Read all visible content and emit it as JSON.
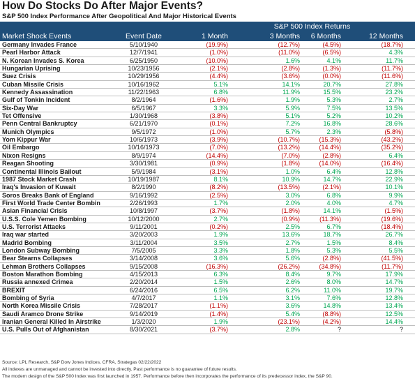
{
  "title": "How Do Stocks Do After Major Events?",
  "subtitle": "S&P 500 Index Performance After Geopolitical And Major Historical Events",
  "header": {
    "group": "S&P 500 Index Returns",
    "event": "Market Shock Events",
    "date": "Event Date",
    "m1": "1 Month",
    "m3": "3 Months",
    "m6": "6 Months",
    "m12": "12 Months"
  },
  "rows": [
    {
      "event": "Germany Invades France",
      "date": "5/10/1940",
      "m1": "(19.9%)",
      "m3": "(12.7%)",
      "m6": "(4.5%)",
      "m12": "(18.7%)"
    },
    {
      "event": "Pearl Harbor Attack",
      "date": "12/7/1941",
      "m1": "(1.0%)",
      "m3": "(11.0%)",
      "m6": "(6.5%)",
      "m12": "4.3%"
    },
    {
      "event": "N. Korean Invades S. Korea",
      "date": "6/25/1950",
      "m1": "(10.0%)",
      "m3": "1.6%",
      "m6": "4.1%",
      "m12": "11.7%"
    },
    {
      "event": "Hungarian Uprising",
      "date": "10/23/1956",
      "m1": "(2.1%)",
      "m3": "(2.8%)",
      "m6": "(1.3%)",
      "m12": "(11.7%)"
    },
    {
      "event": "Suez Crisis",
      "date": "10/29/1956",
      "m1": "(4.4%)",
      "m3": "(3.6%)",
      "m6": "(0.0%)",
      "m12": "(11.6%)"
    },
    {
      "event": "Cuban Missile Crisis",
      "date": "10/16/1962",
      "m1": "5.1%",
      "m3": "14.1%",
      "m6": "20.7%",
      "m12": "27.8%"
    },
    {
      "event": "Kennedy Assassination",
      "date": "11/22/1963",
      "m1": "6.8%",
      "m3": "11.9%",
      "m6": "15.5%",
      "m12": "23.2%"
    },
    {
      "event": "Gulf of Tonkin Incident",
      "date": "8/2/1964",
      "m1": "(1.6%)",
      "m3": "1.9%",
      "m6": "5.3%",
      "m12": "2.7%"
    },
    {
      "event": "Six-Day War",
      "date": "6/5/1967",
      "m1": "3.3%",
      "m3": "5.9%",
      "m6": "7.5%",
      "m12": "13.5%"
    },
    {
      "event": "Tet Offensive",
      "date": "1/30/1968",
      "m1": "(3.8%)",
      "m3": "5.1%",
      "m6": "5.2%",
      "m12": "10.2%"
    },
    {
      "event": "Penn Central Bankruptcy",
      "date": "6/21/1970",
      "m1": "(0.1%)",
      "m3": "7.2%",
      "m6": "16.8%",
      "m12": "28.6%"
    },
    {
      "event": "Munich Olympics",
      "date": "9/5/1972",
      "m1": "(1.0%)",
      "m3": "5.7%",
      "m6": "2.3%",
      "m12": "(5.8%)"
    },
    {
      "event": "Yom Kippur War",
      "date": "10/6/1973",
      "m1": "(3.9%)",
      "m3": "(10.7%)",
      "m6": "(15.3%)",
      "m12": "(43.2%)"
    },
    {
      "event": "Oil Embargo",
      "date": "10/16/1973",
      "m1": "(7.0%)",
      "m3": "(13.2%)",
      "m6": "(14.4%)",
      "m12": "(35.2%)"
    },
    {
      "event": "Nixon Resigns",
      "date": "8/9/1974",
      "m1": "(14.4%)",
      "m3": "(7.0%)",
      "m6": "(2.8%)",
      "m12": "6.4%"
    },
    {
      "event": "Reagan Shooting",
      "date": "3/30/1981",
      "m1": "(0.9%)",
      "m3": "(1.8%)",
      "m6": "(14.0%)",
      "m12": "(16.4%)"
    },
    {
      "event": "Continental Illinois Bailout",
      "date": "5/9/1984",
      "m1": "(3.1%)",
      "m3": "1.0%",
      "m6": "6.4%",
      "m12": "12.8%"
    },
    {
      "event": "1987 Stock Market Crash",
      "date": "10/19/1987",
      "m1": "8.1%",
      "m3": "10.9%",
      "m6": "14.7%",
      "m12": "22.9%"
    },
    {
      "event": "Iraq's Invasion of Kuwait",
      "date": "8/2/1990",
      "m1": "(8.2%)",
      "m3": "(13.5%)",
      "m6": "(2.1%)",
      "m12": "10.1%"
    },
    {
      "event": "Soros Breaks Bank of England",
      "date": "9/16/1992",
      "m1": "(2.5%)",
      "m3": "3.0%",
      "m6": "6.8%",
      "m12": "9.9%"
    },
    {
      "event": "First World Trade Center Bombin",
      "date": "2/26/1993",
      "m1": "1.7%",
      "m3": "2.0%",
      "m6": "4.0%",
      "m12": "4.7%"
    },
    {
      "event": "Asian Financial Crisis",
      "date": "10/8/1997",
      "m1": "(3.7%)",
      "m3": "(1.8%)",
      "m6": "14.1%",
      "m12": "(1.5%)"
    },
    {
      "event": "U.S.S. Cole Yemen Bombing",
      "date": "10/12/2000",
      "m1": "2.7%",
      "m3": "(0.9%)",
      "m6": "(11.3%)",
      "m12": "(19.6%)"
    },
    {
      "event": "U.S. Terrorist Attacks",
      "date": "9/11/2001",
      "m1": "(0.2%)",
      "m3": "2.5%",
      "m6": "6.7%",
      "m12": "(18.4%)"
    },
    {
      "event": "Iraq war started",
      "date": "3/20/2003",
      "m1": "1.9%",
      "m3": "13.6%",
      "m6": "18.7%",
      "m12": "26.7%"
    },
    {
      "event": "Madrid Bombing",
      "date": "3/11/2004",
      "m1": "3.5%",
      "m3": "2.7%",
      "m6": "1.5%",
      "m12": "8.4%"
    },
    {
      "event": "London Subway Bombing",
      "date": "7/5/2005",
      "m1": "3.3%",
      "m3": "1.8%",
      "m6": "5.3%",
      "m12": "5.5%"
    },
    {
      "event": "Bear Stearns Collapses",
      "date": "3/14/2008",
      "m1": "3.6%",
      "m3": "5.6%",
      "m6": "(2.8%)",
      "m12": "(41.5%)"
    },
    {
      "event": "Lehman Brothers Collapses",
      "date": "9/15/2008",
      "m1": "(16.3%)",
      "m3": "(26.2%)",
      "m6": "(34.8%)",
      "m12": "(11.7%)"
    },
    {
      "event": "Boston Marathon Bombing",
      "date": "4/15/2013",
      "m1": "6.3%",
      "m3": "8.4%",
      "m6": "9.7%",
      "m12": "17.9%"
    },
    {
      "event": "Russia annexed Crimea",
      "date": "2/20/2014",
      "m1": "1.5%",
      "m3": "2.6%",
      "m6": "8.0%",
      "m12": "14.7%"
    },
    {
      "event": "BREXIT",
      "date": "6/24/2016",
      "m1": "6.5%",
      "m3": "6.2%",
      "m6": "11.0%",
      "m12": "19.7%"
    },
    {
      "event": "Bombing of Syria",
      "date": "4/7/2017",
      "m1": "1.1%",
      "m3": "3.1%",
      "m6": "7.6%",
      "m12": "12.8%"
    },
    {
      "event": "North Korea Missile Crisis",
      "date": "7/28/2017",
      "m1": "(1.1%)",
      "m3": "3.6%",
      "m6": "14.8%",
      "m12": "13.4%"
    },
    {
      "event": "Saudi Aramco Drone Strike",
      "date": "9/14/2019",
      "m1": "(1.4%)",
      "m3": "5.4%",
      "m6": "(8.8%)",
      "m12": "12.5%"
    },
    {
      "event": "Iranian General Killed In Airstrike",
      "date": "1/3/2020",
      "m1": "1.9%",
      "m3": "(23.1%)",
      "m6": "(4.2%)",
      "m12": "14.4%"
    },
    {
      "event": "U.S. Pulls Out of Afghanistan",
      "date": "8/30/2021",
      "m1": "(3.7%)",
      "m3": "2.8%",
      "m6": "?",
      "m12": "?"
    }
  ],
  "footer": {
    "line1": "Source: LPL Research, S&P Dow Jones Indices, CFRA, Strategas 02/22/2022",
    "line2": "All indexes are unmanaged and cannot be invested into directly.  Past performance is no guarantee of future results.",
    "line3": "The modern design of the S&P 500 Index was first launched in 1957. Performance before then incorporates the performance of its predecessor index, the S&P 90."
  },
  "colors": {
    "header_bg": "#1f4e79",
    "negative": "#c00000",
    "positive": "#00a651"
  }
}
